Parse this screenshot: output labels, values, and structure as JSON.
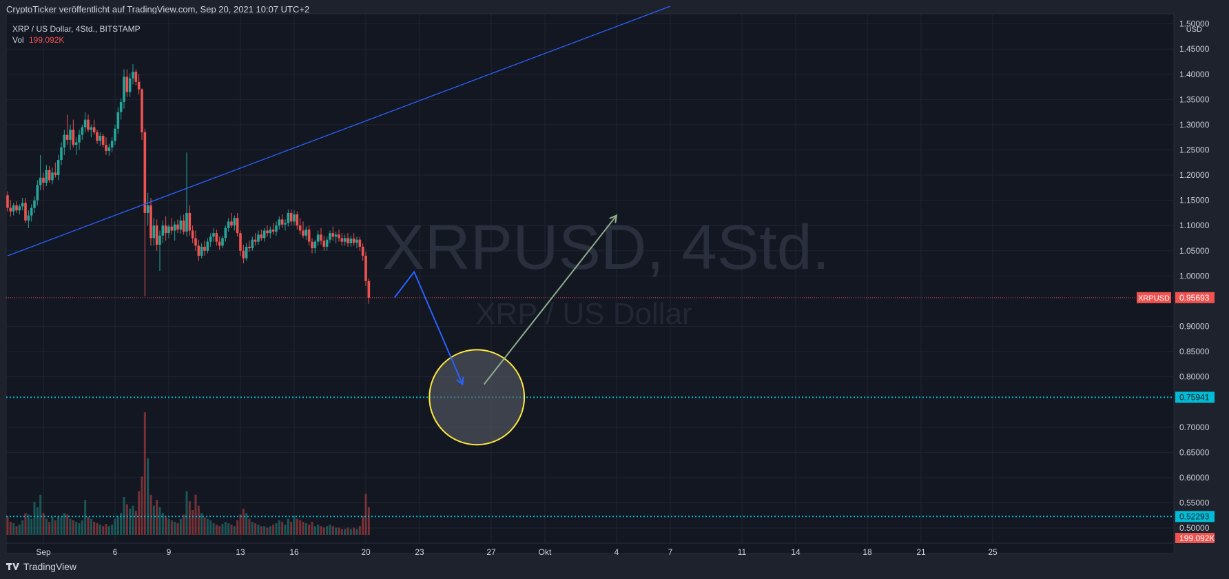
{
  "header": {
    "published": "CryptoTicker veröffentlicht auf TradingView.com, Sep 20, 2021 10:07 UTC+2"
  },
  "footer": {
    "brand": "TradingView",
    "logo_icon": "tradingview-logo-icon"
  },
  "chart_data": {
    "type": "candlestick",
    "legend": {
      "symbol": "XRP / US Dollar, 4Std., BITSTAMP",
      "vol_label": "Vol",
      "vol_value": "199.092K"
    },
    "watermark": {
      "main": "XRPUSD, 4Std.",
      "sub": "XRP / US Dollar"
    },
    "currency": "USD",
    "y_ticks": [
      "1.50000",
      "1.45000",
      "1.40000",
      "1.35000",
      "1.30000",
      "1.25000",
      "1.20000",
      "1.15000",
      "1.10000",
      "1.05000",
      "1.00000",
      "0.90000",
      "0.85000",
      "0.80000",
      "0.70000",
      "0.65000",
      "0.60000",
      "0.55000",
      "0.50000"
    ],
    "ylim": [
      0.47,
      1.52
    ],
    "x_ticks": [
      {
        "label": "Sep",
        "day": 2.0
      },
      {
        "label": "6",
        "day": 6.0
      },
      {
        "label": "9",
        "day": 9.0
      },
      {
        "label": "13",
        "day": 13.0
      },
      {
        "label": "16",
        "day": 16.0
      },
      {
        "label": "20",
        "day": 20.0
      },
      {
        "label": "23",
        "day": 23.0
      },
      {
        "label": "27",
        "day": 27.0
      },
      {
        "label": "Okt",
        "day": 30.0
      },
      {
        "label": "4",
        "day": 34.0
      },
      {
        "label": "7",
        "day": 37.0
      },
      {
        "label": "11",
        "day": 41.0
      },
      {
        "label": "14",
        "day": 44.0
      },
      {
        "label": "18",
        "day": 48.0
      },
      {
        "label": "21",
        "day": 51.0
      },
      {
        "label": "25",
        "day": 55.0
      }
    ],
    "last_price": {
      "label": "XRPUSD",
      "value": "0.95693",
      "price": 0.95693,
      "color": "#ef5350"
    },
    "levels": [
      {
        "value": "0.75941",
        "price": 0.75941,
        "color": "#00bcd4"
      },
      {
        "value": "0.52293",
        "price": 0.52293,
        "color": "#00bcd4"
      }
    ],
    "volume_badge": {
      "value": "199.092K",
      "color": "#ef5350"
    },
    "colors": {
      "up": "#26a69a",
      "down": "#ef5350",
      "trendline": "#2962ff",
      "circle": "#ffeb3b",
      "arrow_green": "#8fae8f"
    },
    "trendline": {
      "p1": {
        "day": 0.0,
        "price": 1.04
      },
      "p2": {
        "day": 37.0,
        "price": 1.535
      }
    },
    "arrow_blue": [
      {
        "day": 21.6,
        "price": 0.957
      },
      {
        "day": 22.7,
        "price": 1.008
      },
      {
        "day": 25.4,
        "price": 0.785
      }
    ],
    "arrow_green": [
      {
        "day": 26.6,
        "price": 0.785
      },
      {
        "day": 34.0,
        "price": 1.12
      }
    ],
    "circle": {
      "day": 26.2,
      "price": 0.75941,
      "r_days": 2.65
    },
    "candles": [
      {
        "d": 0.0,
        "o": 1.16,
        "h": 1.168,
        "l": 1.128,
        "c": 1.135,
        "v": 25
      },
      {
        "d": 0.1667,
        "o": 1.135,
        "h": 1.15,
        "l": 1.118,
        "c": 1.128,
        "v": 18
      },
      {
        "d": 0.3333,
        "o": 1.128,
        "h": 1.145,
        "l": 1.12,
        "c": 1.14,
        "v": 16
      },
      {
        "d": 0.5,
        "o": 1.14,
        "h": 1.148,
        "l": 1.125,
        "c": 1.13,
        "v": 12
      },
      {
        "d": 0.6667,
        "o": 1.13,
        "h": 1.142,
        "l": 1.122,
        "c": 1.138,
        "v": 14
      },
      {
        "d": 0.8333,
        "o": 1.138,
        "h": 1.155,
        "l": 1.13,
        "c": 1.145,
        "v": 20
      },
      {
        "d": 1.0,
        "o": 1.145,
        "h": 1.155,
        "l": 1.105,
        "c": 1.11,
        "v": 30
      },
      {
        "d": 1.1667,
        "o": 1.11,
        "h": 1.13,
        "l": 1.095,
        "c": 1.12,
        "v": 28
      },
      {
        "d": 1.3333,
        "o": 1.12,
        "h": 1.142,
        "l": 1.108,
        "c": 1.135,
        "v": 22
      },
      {
        "d": 1.5,
        "o": 1.135,
        "h": 1.158,
        "l": 1.125,
        "c": 1.15,
        "v": 45
      },
      {
        "d": 1.6667,
        "o": 1.15,
        "h": 1.19,
        "l": 1.14,
        "c": 1.18,
        "v": 38
      },
      {
        "d": 1.8333,
        "o": 1.18,
        "h": 1.24,
        "l": 1.17,
        "c": 1.195,
        "v": 55
      },
      {
        "d": 2.0,
        "o": 1.195,
        "h": 1.205,
        "l": 1.17,
        "c": 1.185,
        "v": 30
      },
      {
        "d": 2.1667,
        "o": 1.185,
        "h": 1.22,
        "l": 1.178,
        "c": 1.21,
        "v": 22
      },
      {
        "d": 2.3333,
        "o": 1.21,
        "h": 1.218,
        "l": 1.185,
        "c": 1.19,
        "v": 18
      },
      {
        "d": 2.5,
        "o": 1.19,
        "h": 1.215,
        "l": 1.182,
        "c": 1.205,
        "v": 25
      },
      {
        "d": 2.6667,
        "o": 1.205,
        "h": 1.225,
        "l": 1.195,
        "c": 1.2,
        "v": 20
      },
      {
        "d": 2.8333,
        "o": 1.2,
        "h": 1.24,
        "l": 1.19,
        "c": 1.23,
        "v": 26
      },
      {
        "d": 3.0,
        "o": 1.23,
        "h": 1.265,
        "l": 1.22,
        "c": 1.255,
        "v": 24
      },
      {
        "d": 3.1667,
        "o": 1.255,
        "h": 1.29,
        "l": 1.24,
        "c": 1.28,
        "v": 30
      },
      {
        "d": 3.3333,
        "o": 1.28,
        "h": 1.32,
        "l": 1.26,
        "c": 1.27,
        "v": 28
      },
      {
        "d": 3.5,
        "o": 1.27,
        "h": 1.3,
        "l": 1.25,
        "c": 1.29,
        "v": 22
      },
      {
        "d": 3.6667,
        "o": 1.29,
        "h": 1.31,
        "l": 1.255,
        "c": 1.26,
        "v": 20
      },
      {
        "d": 3.8333,
        "o": 1.26,
        "h": 1.275,
        "l": 1.24,
        "c": 1.265,
        "v": 18
      },
      {
        "d": 4.0,
        "o": 1.265,
        "h": 1.29,
        "l": 1.25,
        "c": 1.28,
        "v": 16
      },
      {
        "d": 4.1667,
        "o": 1.28,
        "h": 1.3,
        "l": 1.27,
        "c": 1.295,
        "v": 20
      },
      {
        "d": 4.3333,
        "o": 1.295,
        "h": 1.325,
        "l": 1.285,
        "c": 1.31,
        "v": 48
      },
      {
        "d": 4.5,
        "o": 1.31,
        "h": 1.32,
        "l": 1.285,
        "c": 1.29,
        "v": 25
      },
      {
        "d": 4.6667,
        "o": 1.29,
        "h": 1.3,
        "l": 1.275,
        "c": 1.295,
        "v": 22
      },
      {
        "d": 4.8333,
        "o": 1.295,
        "h": 1.31,
        "l": 1.28,
        "c": 1.285,
        "v": 18
      },
      {
        "d": 5.0,
        "o": 1.285,
        "h": 1.29,
        "l": 1.262,
        "c": 1.268,
        "v": 16
      },
      {
        "d": 5.1667,
        "o": 1.268,
        "h": 1.285,
        "l": 1.258,
        "c": 1.278,
        "v": 14
      },
      {
        "d": 5.3333,
        "o": 1.278,
        "h": 1.282,
        "l": 1.255,
        "c": 1.26,
        "v": 12
      },
      {
        "d": 5.5,
        "o": 1.26,
        "h": 1.275,
        "l": 1.24,
        "c": 1.248,
        "v": 15
      },
      {
        "d": 5.6667,
        "o": 1.248,
        "h": 1.262,
        "l": 1.238,
        "c": 1.255,
        "v": 12
      },
      {
        "d": 5.8333,
        "o": 1.255,
        "h": 1.275,
        "l": 1.245,
        "c": 1.268,
        "v": 14
      },
      {
        "d": 6.0,
        "o": 1.268,
        "h": 1.3,
        "l": 1.26,
        "c": 1.292,
        "v": 22
      },
      {
        "d": 6.1667,
        "o": 1.292,
        "h": 1.335,
        "l": 1.282,
        "c": 1.325,
        "v": 26
      },
      {
        "d": 6.3333,
        "o": 1.325,
        "h": 1.352,
        "l": 1.31,
        "c": 1.345,
        "v": 30
      },
      {
        "d": 6.5,
        "o": 1.345,
        "h": 1.41,
        "l": 1.332,
        "c": 1.395,
        "v": 52
      },
      {
        "d": 6.6667,
        "o": 1.395,
        "h": 1.41,
        "l": 1.355,
        "c": 1.365,
        "v": 42
      },
      {
        "d": 6.8333,
        "o": 1.365,
        "h": 1.402,
        "l": 1.355,
        "c": 1.392,
        "v": 36
      },
      {
        "d": 7.0,
        "o": 1.392,
        "h": 1.42,
        "l": 1.38,
        "c": 1.405,
        "v": 40
      },
      {
        "d": 7.1667,
        "o": 1.405,
        "h": 1.41,
        "l": 1.378,
        "c": 1.385,
        "v": 33
      },
      {
        "d": 7.3333,
        "o": 1.385,
        "h": 1.4,
        "l": 1.36,
        "c": 1.37,
        "v": 60
      },
      {
        "d": 7.5,
        "o": 1.37,
        "h": 1.372,
        "l": 1.27,
        "c": 1.285,
        "v": 80
      },
      {
        "d": 7.6667,
        "o": 1.285,
        "h": 1.292,
        "l": 0.96,
        "c": 1.125,
        "v": 168
      },
      {
        "d": 7.8333,
        "o": 1.125,
        "h": 1.165,
        "l": 1.1,
        "c": 1.14,
        "v": 105
      },
      {
        "d": 8.0,
        "o": 1.14,
        "h": 1.155,
        "l": 1.06,
        "c": 1.075,
        "v": 55
      },
      {
        "d": 8.1667,
        "o": 1.075,
        "h": 1.115,
        "l": 1.06,
        "c": 1.1,
        "v": 40
      },
      {
        "d": 8.3333,
        "o": 1.1,
        "h": 1.112,
        "l": 1.05,
        "c": 1.062,
        "v": 48
      },
      {
        "d": 8.5,
        "o": 1.062,
        "h": 1.09,
        "l": 1.01,
        "c": 1.08,
        "v": 38
      },
      {
        "d": 8.6667,
        "o": 1.08,
        "h": 1.11,
        "l": 1.065,
        "c": 1.1,
        "v": 30
      },
      {
        "d": 8.8333,
        "o": 1.1,
        "h": 1.118,
        "l": 1.07,
        "c": 1.085,
        "v": 26
      },
      {
        "d": 9.0,
        "o": 1.085,
        "h": 1.102,
        "l": 1.075,
        "c": 1.098,
        "v": 22
      },
      {
        "d": 9.1667,
        "o": 1.098,
        "h": 1.115,
        "l": 1.082,
        "c": 1.09,
        "v": 20
      },
      {
        "d": 9.3333,
        "o": 1.09,
        "h": 1.108,
        "l": 1.07,
        "c": 1.102,
        "v": 18
      },
      {
        "d": 9.5,
        "o": 1.102,
        "h": 1.112,
        "l": 1.085,
        "c": 1.092,
        "v": 16
      },
      {
        "d": 9.6667,
        "o": 1.092,
        "h": 1.12,
        "l": 1.084,
        "c": 1.11,
        "v": 22
      },
      {
        "d": 9.8333,
        "o": 1.11,
        "h": 1.122,
        "l": 1.082,
        "c": 1.088,
        "v": 28
      },
      {
        "d": 10.0,
        "o": 1.088,
        "h": 1.245,
        "l": 1.078,
        "c": 1.125,
        "v": 60
      },
      {
        "d": 10.1667,
        "o": 1.125,
        "h": 1.14,
        "l": 1.08,
        "c": 1.09,
        "v": 46
      },
      {
        "d": 10.3333,
        "o": 1.09,
        "h": 1.1,
        "l": 1.065,
        "c": 1.075,
        "v": 34
      },
      {
        "d": 10.5,
        "o": 1.075,
        "h": 1.09,
        "l": 1.05,
        "c": 1.06,
        "v": 55
      },
      {
        "d": 10.6667,
        "o": 1.06,
        "h": 1.072,
        "l": 1.03,
        "c": 1.04,
        "v": 40
      },
      {
        "d": 10.8333,
        "o": 1.04,
        "h": 1.065,
        "l": 1.035,
        "c": 1.058,
        "v": 30
      },
      {
        "d": 11.0,
        "o": 1.058,
        "h": 1.07,
        "l": 1.04,
        "c": 1.05,
        "v": 24
      },
      {
        "d": 11.1667,
        "o": 1.05,
        "h": 1.075,
        "l": 1.045,
        "c": 1.068,
        "v": 22
      },
      {
        "d": 11.3333,
        "o": 1.068,
        "h": 1.085,
        "l": 1.058,
        "c": 1.078,
        "v": 20
      },
      {
        "d": 11.5,
        "o": 1.078,
        "h": 1.095,
        "l": 1.068,
        "c": 1.085,
        "v": 16
      },
      {
        "d": 11.6667,
        "o": 1.085,
        "h": 1.092,
        "l": 1.06,
        "c": 1.068,
        "v": 14
      },
      {
        "d": 11.8333,
        "o": 1.068,
        "h": 1.078,
        "l": 1.052,
        "c": 1.06,
        "v": 12
      },
      {
        "d": 12.0,
        "o": 1.06,
        "h": 1.08,
        "l": 1.055,
        "c": 1.075,
        "v": 15
      },
      {
        "d": 12.1667,
        "o": 1.075,
        "h": 1.1,
        "l": 1.068,
        "c": 1.095,
        "v": 18
      },
      {
        "d": 12.3333,
        "o": 1.095,
        "h": 1.115,
        "l": 1.088,
        "c": 1.108,
        "v": 16
      },
      {
        "d": 12.5,
        "o": 1.108,
        "h": 1.125,
        "l": 1.095,
        "c": 1.1,
        "v": 14
      },
      {
        "d": 12.6667,
        "o": 1.1,
        "h": 1.12,
        "l": 1.09,
        "c": 1.115,
        "v": 12
      },
      {
        "d": 12.8333,
        "o": 1.115,
        "h": 1.125,
        "l": 1.078,
        "c": 1.085,
        "v": 20
      },
      {
        "d": 13.0,
        "o": 1.085,
        "h": 1.09,
        "l": 1.04,
        "c": 1.05,
        "v": 28
      },
      {
        "d": 13.1667,
        "o": 1.05,
        "h": 1.062,
        "l": 1.025,
        "c": 1.035,
        "v": 36
      },
      {
        "d": 13.3333,
        "o": 1.035,
        "h": 1.065,
        "l": 1.03,
        "c": 1.058,
        "v": 30
      },
      {
        "d": 13.5,
        "o": 1.058,
        "h": 1.07,
        "l": 1.048,
        "c": 1.055,
        "v": 22
      },
      {
        "d": 13.6667,
        "o": 1.055,
        "h": 1.078,
        "l": 1.05,
        "c": 1.072,
        "v": 18
      },
      {
        "d": 13.8333,
        "o": 1.072,
        "h": 1.085,
        "l": 1.06,
        "c": 1.068,
        "v": 16
      },
      {
        "d": 14.0,
        "o": 1.068,
        "h": 1.09,
        "l": 1.062,
        "c": 1.082,
        "v": 14
      },
      {
        "d": 14.1667,
        "o": 1.082,
        "h": 1.092,
        "l": 1.07,
        "c": 1.075,
        "v": 12
      },
      {
        "d": 14.3333,
        "o": 1.075,
        "h": 1.095,
        "l": 1.068,
        "c": 1.09,
        "v": 12
      },
      {
        "d": 14.5,
        "o": 1.09,
        "h": 1.1,
        "l": 1.078,
        "c": 1.085,
        "v": 10
      },
      {
        "d": 14.6667,
        "o": 1.085,
        "h": 1.098,
        "l": 1.075,
        "c": 1.092,
        "v": 12
      },
      {
        "d": 14.8333,
        "o": 1.092,
        "h": 1.105,
        "l": 1.082,
        "c": 1.088,
        "v": 14
      },
      {
        "d": 15.0,
        "o": 1.088,
        "h": 1.108,
        "l": 1.08,
        "c": 1.1,
        "v": 16
      },
      {
        "d": 15.1667,
        "o": 1.1,
        "h": 1.118,
        "l": 1.092,
        "c": 1.112,
        "v": 20
      },
      {
        "d": 15.3333,
        "o": 1.112,
        "h": 1.122,
        "l": 1.095,
        "c": 1.102,
        "v": 18
      },
      {
        "d": 15.5,
        "o": 1.102,
        "h": 1.112,
        "l": 1.09,
        "c": 1.105,
        "v": 14
      },
      {
        "d": 15.6667,
        "o": 1.105,
        "h": 1.132,
        "l": 1.098,
        "c": 1.125,
        "v": 22
      },
      {
        "d": 15.8333,
        "o": 1.125,
        "h": 1.132,
        "l": 1.1,
        "c": 1.108,
        "v": 18
      },
      {
        "d": 16.0,
        "o": 1.108,
        "h": 1.13,
        "l": 1.1,
        "c": 1.122,
        "v": 26
      },
      {
        "d": 16.1667,
        "o": 1.122,
        "h": 1.128,
        "l": 1.092,
        "c": 1.1,
        "v": 22
      },
      {
        "d": 16.3333,
        "o": 1.1,
        "h": 1.115,
        "l": 1.082,
        "c": 1.09,
        "v": 20
      },
      {
        "d": 16.5,
        "o": 1.09,
        "h": 1.108,
        "l": 1.075,
        "c": 1.08,
        "v": 18
      },
      {
        "d": 16.6667,
        "o": 1.08,
        "h": 1.098,
        "l": 1.072,
        "c": 1.092,
        "v": 16
      },
      {
        "d": 16.8333,
        "o": 1.092,
        "h": 1.1,
        "l": 1.06,
        "c": 1.068,
        "v": 14
      },
      {
        "d": 17.0,
        "o": 1.068,
        "h": 1.075,
        "l": 1.045,
        "c": 1.055,
        "v": 18
      },
      {
        "d": 17.1667,
        "o": 1.055,
        "h": 1.072,
        "l": 1.045,
        "c": 1.068,
        "v": 12
      },
      {
        "d": 17.3333,
        "o": 1.068,
        "h": 1.09,
        "l": 1.06,
        "c": 1.082,
        "v": 14
      },
      {
        "d": 17.5,
        "o": 1.082,
        "h": 1.095,
        "l": 1.062,
        "c": 1.07,
        "v": 12
      },
      {
        "d": 17.6667,
        "o": 1.07,
        "h": 1.08,
        "l": 1.05,
        "c": 1.058,
        "v": 10
      },
      {
        "d": 17.8333,
        "o": 1.058,
        "h": 1.078,
        "l": 1.05,
        "c": 1.072,
        "v": 12
      },
      {
        "d": 18.0,
        "o": 1.072,
        "h": 1.09,
        "l": 1.065,
        "c": 1.085,
        "v": 14
      },
      {
        "d": 18.1667,
        "o": 1.085,
        "h": 1.098,
        "l": 1.07,
        "c": 1.078,
        "v": 12
      },
      {
        "d": 18.3333,
        "o": 1.078,
        "h": 1.088,
        "l": 1.065,
        "c": 1.082,
        "v": 10
      },
      {
        "d": 18.5,
        "o": 1.082,
        "h": 1.092,
        "l": 1.068,
        "c": 1.075,
        "v": 10
      },
      {
        "d": 18.6667,
        "o": 1.075,
        "h": 1.085,
        "l": 1.06,
        "c": 1.068,
        "v": 8
      },
      {
        "d": 18.8333,
        "o": 1.068,
        "h": 1.082,
        "l": 1.06,
        "c": 1.075,
        "v": 8
      },
      {
        "d": 19.0,
        "o": 1.075,
        "h": 1.085,
        "l": 1.058,
        "c": 1.065,
        "v": 10
      },
      {
        "d": 19.1667,
        "o": 1.065,
        "h": 1.08,
        "l": 1.058,
        "c": 1.074,
        "v": 8
      },
      {
        "d": 19.3333,
        "o": 1.074,
        "h": 1.085,
        "l": 1.06,
        "c": 1.066,
        "v": 10
      },
      {
        "d": 19.5,
        "o": 1.066,
        "h": 1.078,
        "l": 1.055,
        "c": 1.072,
        "v": 8
      },
      {
        "d": 19.6667,
        "o": 1.072,
        "h": 1.078,
        "l": 1.05,
        "c": 1.058,
        "v": 12
      },
      {
        "d": 19.8333,
        "o": 1.058,
        "h": 1.065,
        "l": 1.03,
        "c": 1.04,
        "v": 26
      },
      {
        "d": 20.0,
        "o": 1.04,
        "h": 1.048,
        "l": 0.98,
        "c": 0.99,
        "v": 56
      },
      {
        "d": 20.1667,
        "o": 0.99,
        "h": 0.995,
        "l": 0.945,
        "c": 0.957,
        "v": 38
      }
    ]
  }
}
